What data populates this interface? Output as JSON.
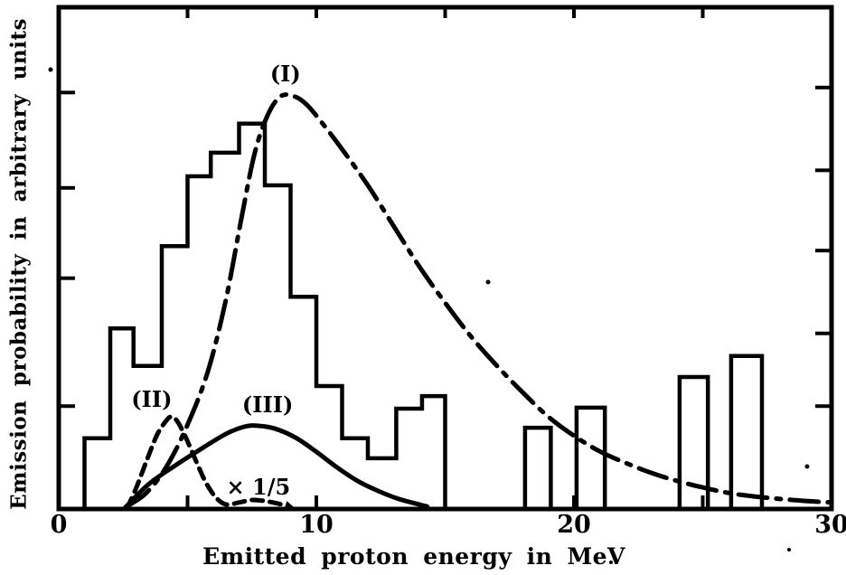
{
  "figure": {
    "background": "#ffffff",
    "ink": "#000000"
  },
  "chart_data": {
    "type": "histogram+curves",
    "title": "",
    "xlabel": "Emitted proton energy in MeV",
    "ylabel": "Emission probability in arbitrary units",
    "xlim": [
      0,
      30
    ],
    "ylim": [
      0,
      100
    ],
    "y_units": "arbitrary units (percent of axis height)",
    "grid": false,
    "x_tick_labels": [
      {
        "value": 0,
        "label": "0"
      },
      {
        "value": 10,
        "label": "10"
      },
      {
        "value": 20,
        "label": "20"
      },
      {
        "value": 30,
        "label": "30"
      }
    ],
    "x_minor_ticks_bottom": [
      5,
      10,
      15,
      20,
      25
    ],
    "x_minor_ticks_top": [
      5,
      10,
      15,
      20,
      25
    ],
    "y_ticks_left": [
      83,
      64,
      46,
      20.5
    ],
    "y_ticks_right": [
      84,
      67.5,
      51.5,
      35,
      20.5
    ],
    "histogram_bins": [
      {
        "from": 1.0,
        "to": 2.0,
        "value": 14.1
      },
      {
        "from": 2.0,
        "to": 2.9,
        "value": 36.0
      },
      {
        "from": 2.9,
        "to": 4.0,
        "value": 28.5
      },
      {
        "from": 4.0,
        "to": 5.0,
        "value": 52.4
      },
      {
        "from": 5.0,
        "to": 5.9,
        "value": 66.3
      },
      {
        "from": 5.9,
        "to": 7.0,
        "value": 71.0
      },
      {
        "from": 7.0,
        "to": 8.0,
        "value": 76.8
      },
      {
        "from": 8.0,
        "to": 9.0,
        "value": 64.5
      },
      {
        "from": 9.0,
        "to": 10.0,
        "value": 42.3
      },
      {
        "from": 10.0,
        "to": 11.0,
        "value": 24.5
      },
      {
        "from": 11.0,
        "to": 12.0,
        "value": 14.1
      },
      {
        "from": 12.0,
        "to": 13.1,
        "value": 10.1
      },
      {
        "from": 13.1,
        "to": 14.1,
        "value": 20.0
      },
      {
        "from": 14.1,
        "to": 15.0,
        "value": 22.5
      },
      {
        "from": 18.1,
        "to": 19.1,
        "value": 16.2
      },
      {
        "from": 20.1,
        "to": 21.2,
        "value": 20.2
      },
      {
        "from": 24.1,
        "to": 25.2,
        "value": 26.3
      },
      {
        "from": 26.1,
        "to": 27.3,
        "value": 30.5
      }
    ],
    "series": [
      {
        "name": "(I)",
        "style": "dash-dot",
        "arrow_end": false,
        "points": [
          [
            2.6,
            0.4
          ],
          [
            3.4,
            3.2
          ],
          [
            4.2,
            8.6
          ],
          [
            5.0,
            16.8
          ],
          [
            5.8,
            27.6
          ],
          [
            6.5,
            42.0
          ],
          [
            7.1,
            58.2
          ],
          [
            7.6,
            70.8
          ],
          [
            8.1,
            78.4
          ],
          [
            8.6,
            82.2
          ],
          [
            9.1,
            82.3
          ],
          [
            9.6,
            80.7
          ],
          [
            10.2,
            77.1
          ],
          [
            11.0,
            71.7
          ],
          [
            12.0,
            64.5
          ],
          [
            13.0,
            56.4
          ],
          [
            14.0,
            48.3
          ],
          [
            15.0,
            41.1
          ],
          [
            16.0,
            34.4
          ],
          [
            17.0,
            28.6
          ],
          [
            18.0,
            23.3
          ],
          [
            19.0,
            18.4
          ],
          [
            20.0,
            14.6
          ],
          [
            21.0,
            11.5
          ],
          [
            22.0,
            9.2
          ],
          [
            23.0,
            7.2
          ],
          [
            24.0,
            5.6
          ],
          [
            25.0,
            4.3
          ],
          [
            26.0,
            3.2
          ],
          [
            27.0,
            2.5
          ],
          [
            28.0,
            2.0
          ],
          [
            29.0,
            1.6
          ],
          [
            30.0,
            1.3
          ]
        ]
      },
      {
        "name": "(II)",
        "style": "dashed",
        "arrow_end": true,
        "points": [
          [
            2.65,
            0.2
          ],
          [
            3.0,
            4.1
          ],
          [
            3.4,
            9.5
          ],
          [
            3.8,
            14.6
          ],
          [
            4.1,
            17.1
          ],
          [
            4.35,
            18.4
          ],
          [
            4.6,
            17.5
          ],
          [
            4.9,
            14.6
          ],
          [
            5.3,
            9.9
          ],
          [
            5.7,
            5.4
          ],
          [
            6.1,
            2.3
          ],
          [
            6.5,
            0.9
          ],
          [
            7.0,
            1.3
          ],
          [
            7.5,
            1.8
          ],
          [
            8.0,
            1.6
          ],
          [
            8.5,
            1.1
          ],
          [
            8.9,
            0.5
          ]
        ]
      },
      {
        "name": "(III)",
        "style": "solid",
        "arrow_end": false,
        "points": [
          [
            2.6,
            0.4
          ],
          [
            3.5,
            5.0
          ],
          [
            4.5,
            8.6
          ],
          [
            5.5,
            11.9
          ],
          [
            6.5,
            15.0
          ],
          [
            7.2,
            16.4
          ],
          [
            7.7,
            16.6
          ],
          [
            8.4,
            16.0
          ],
          [
            9.2,
            14.2
          ],
          [
            10.0,
            11.4
          ],
          [
            10.8,
            8.3
          ],
          [
            11.6,
            5.6
          ],
          [
            12.4,
            3.6
          ],
          [
            13.2,
            2.0
          ],
          [
            14.0,
            0.9
          ],
          [
            14.3,
            0.5
          ]
        ]
      }
    ],
    "annotations": [
      {
        "id": "label-curve-I",
        "text": "(I)",
        "x": 8.8,
        "y": 86.7
      },
      {
        "id": "label-curve-II",
        "text": "(II)",
        "x": 3.61,
        "y": 21.8
      },
      {
        "id": "label-curve-III",
        "text": "(III)",
        "x": 8.11,
        "y": 20.7
      },
      {
        "id": "scale-note",
        "text": "× 1/5",
        "x": 7.75,
        "y": 4.3
      }
    ]
  }
}
